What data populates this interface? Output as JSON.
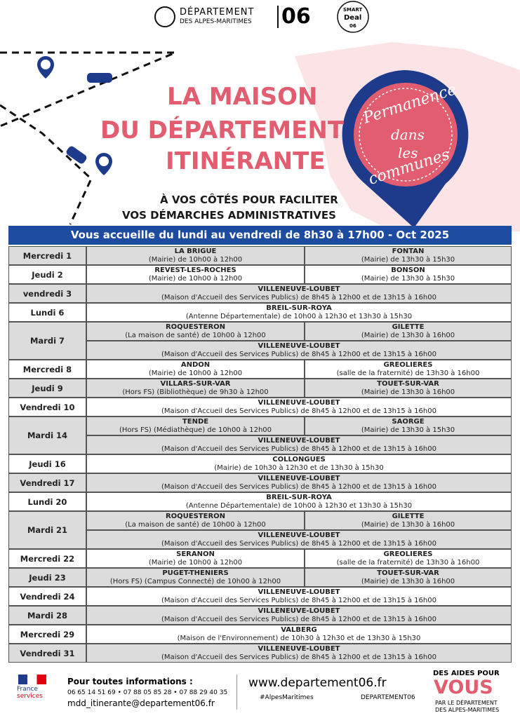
{
  "header": {
    "logo_line1": "DÉPARTEMENT",
    "logo_line2": "DES ALPES-MARITIMES",
    "logo_number": "06",
    "badge_line1": "SMART",
    "badge_line2": "Deal",
    "badge_line3": "06"
  },
  "title": {
    "line1": "LA MAISON",
    "line2": "DU DÉPARTEMENT",
    "line3": "ITINÉRANTE"
  },
  "stamp": {
    "line1": "Permanence",
    "line2": "dans",
    "line3": "les",
    "line4": "communes"
  },
  "subtitle": {
    "line1": "À VOS CÔTÉS POUR FACILITER",
    "line2": "VOS DÉMARCHES ADMINISTRATIVES"
  },
  "table": {
    "heading": "Vous accueille du lundi au vendredi de 8h30 à 17h00 - Oct 2025",
    "rows": [
      {
        "day": "Mercredi 1",
        "slots": [
          [
            {
              "place": "LA BRIGUE",
              "detail": "(Mairie) de 10h00 à 12h00"
            },
            {
              "place": "FONTAN",
              "detail": "(Mairie) de 13h30 à 15h30"
            }
          ]
        ]
      },
      {
        "day": "Jeudi 2",
        "slots": [
          [
            {
              "place": "REVEST-LES-ROCHES",
              "detail": "(Mairie) de 10h00 à 12h00"
            },
            {
              "place": "BONSON",
              "detail": "(Mairie) de 13h30 à 15h30"
            }
          ]
        ]
      },
      {
        "day": "vendredi 3",
        "slots": [
          [
            {
              "place": "VILLENEUVE-LOUBET",
              "detail": "(Maison d'Accueil des Services Publics) de 8h45 à 12h00 et de 13h15 à 16h00"
            }
          ]
        ]
      },
      {
        "day": "Lundi 6",
        "slots": [
          [
            {
              "place": "BREIL-SUR-ROYA",
              "detail": "(Antenne Départementale) de 10h00 à 12h30 et 13h30 à 15h30"
            }
          ]
        ]
      },
      {
        "day": "Mardi 7",
        "slots": [
          [
            {
              "place": "ROQUESTERON",
              "detail": "(La maison de santé) de 10h00 à 12h00"
            },
            {
              "place": "GILETTE",
              "detail": "(Mairie) de 13h30 à 16h00"
            }
          ],
          [
            {
              "place": "VILLENEUVE-LOUBET",
              "detail": "(Maison d'Accueil des Services Publics) de 8h45 à 12h00 et de 13h15 à 16h00"
            }
          ]
        ]
      },
      {
        "day": "Mercredi 8",
        "slots": [
          [
            {
              "place": "ANDON",
              "detail": "(Mairie) de 10h00 à 12h00"
            },
            {
              "place": "GREOLIERES",
              "detail": "(salle de la fraternité) de 13h30 à 16h00"
            }
          ]
        ]
      },
      {
        "day": "Jeudi 9",
        "slots": [
          [
            {
              "place": "VILLARS-SUR-VAR",
              "detail": "(Hors FS) (Bibliothèque) de 9h30 à 12h00"
            },
            {
              "place": "TOUET-SUR-VAR",
              "detail": "(Mairie) de 13h30 à 16h00"
            }
          ]
        ]
      },
      {
        "day": "Vendredi 10",
        "slots": [
          [
            {
              "place": "VILLENEUVE-LOUBET",
              "detail": "(Maison d'Accueil des Services Publics) de 8h45 à 12h00 et de 13h15 à 16h00"
            }
          ]
        ]
      },
      {
        "day": "Mardi 14",
        "slots": [
          [
            {
              "place": "TENDE",
              "detail": "(Hors FS) (Médiathèque) de 10h00 à 12h00"
            },
            {
              "place": "SAORGE",
              "detail": "(Mairie) de 13h30 à 15h30"
            }
          ],
          [
            {
              "place": "VILLENEUVE-LOUBET",
              "detail": "(Maison d'Accueil des Services Publics) de 8h45 à 12h00 et de 13h15 à 16h00"
            }
          ]
        ]
      },
      {
        "day": "Jeudi 16",
        "slots": [
          [
            {
              "place": "COLLONGUES",
              "detail": "(Mairie) de 10h30 à 12h30 et de 13h30 à 15h30"
            }
          ]
        ]
      },
      {
        "day": "Vendredi 17",
        "slots": [
          [
            {
              "place": "VILLENEUVE-LOUBET",
              "detail": "(Maison d'Accueil des Services Publics) de 8h45 à 12h00 et de 13h15 à 16h00"
            }
          ]
        ]
      },
      {
        "day": "Lundi 20",
        "slots": [
          [
            {
              "place": "BREIL-SUR-ROYA",
              "detail": "(Antenne Départementale) de 10h00 à 12h30 et 13h30 à 15h30"
            }
          ]
        ]
      },
      {
        "day": "Mardi 21",
        "slots": [
          [
            {
              "place": "ROQUESTERON",
              "detail": "(La maison de santé) de 10h00 à 12h00"
            },
            {
              "place": "GILETTE",
              "detail": "(Mairie) de 13h30 à 16h00"
            }
          ],
          [
            {
              "place": "VILLENEUVE-LOUBET",
              "detail": "(Maison d'Accueil des Services Publics) de 8h45 à 12h00 et de 13h15 à 16h00"
            }
          ]
        ]
      },
      {
        "day": "Mercredi 22",
        "slots": [
          [
            {
              "place": "SERANON",
              "detail": "(Mairie) de 10h00 à 12h00"
            },
            {
              "place": "GREOLIERES",
              "detail": "(salle de la fraternité) de 13h30 à 16h00"
            }
          ]
        ]
      },
      {
        "day": "Jeudi 23",
        "slots": [
          [
            {
              "place": "PUGET-THENIERS",
              "detail": "(Hors FS) (Campus Connecté) de 10h00 à 12h00"
            },
            {
              "place": "TOUET-SUR-VAR",
              "detail": "(Mairie) de 13h30 à 16h00"
            }
          ]
        ]
      },
      {
        "day": "Vendredi 24",
        "slots": [
          [
            {
              "place": "VILLENEUVE-LOUBET",
              "detail": "(Maison d'Accueil des Services Publics) de 8h45 à 12h00 et de 13h15 à 16h00"
            }
          ]
        ]
      },
      {
        "day": "Mardi 28",
        "slots": [
          [
            {
              "place": "VILLENEUVE-LOUBET",
              "detail": "(Maison d'Accueil des Services Publics) de 8h45 à 12h00 et de 13h15 à 16h00"
            }
          ]
        ]
      },
      {
        "day": "Mercredi 29",
        "slots": [
          [
            {
              "place": "VALBERG",
              "detail": "(Maison de l'Environnement) de 10h30 à 12h30 et de 13h30 à 15h30"
            }
          ]
        ]
      },
      {
        "day": "Vendredi 31",
        "slots": [
          [
            {
              "place": "VILLENEUVE-LOUBET",
              "detail": "(Maison d'Accueil des Services Publics) de 8h45 à 12h00 et de 13h15 à 16h00"
            }
          ]
        ]
      }
    ]
  },
  "footer": {
    "fs_line1": "France",
    "fs_line2": "services",
    "info_title": "Pour toutes informations :",
    "phones": "06 65 14 51 69 • 07 88 05 85 28 • 07 88 29 40 35",
    "email": "mdd_itinerante@departement06.fr",
    "website": "www.departement06.fr",
    "hashtag": "#AlpesMaritimes",
    "social": "DEPARTEMENT06",
    "aides_line1": "DES AIDES POUR",
    "aides_line2": "VOUS",
    "aides_line3": "PAR LE DÉPARTEMENT",
    "aides_line4": "DES ALPES-MARITIMES"
  }
}
